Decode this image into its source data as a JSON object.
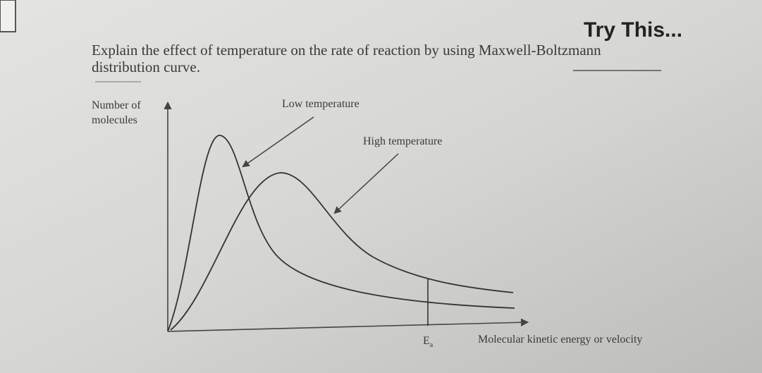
{
  "header": {
    "title": "Try This..."
  },
  "question": {
    "lines": [
      "Explain the effect of temperature on the rate of reaction by using Maxwell-Boltzmann",
      "distribution curve."
    ]
  },
  "diagram": {
    "y_axis_label": [
      "Number of",
      "molecules"
    ],
    "x_axis_label": "Molecular kinetic energy or velocity",
    "curves": [
      {
        "label": "Low temperature"
      },
      {
        "label": "High temperature"
      }
    ],
    "threshold": {
      "symbol": "E",
      "subscript": "a"
    }
  }
}
